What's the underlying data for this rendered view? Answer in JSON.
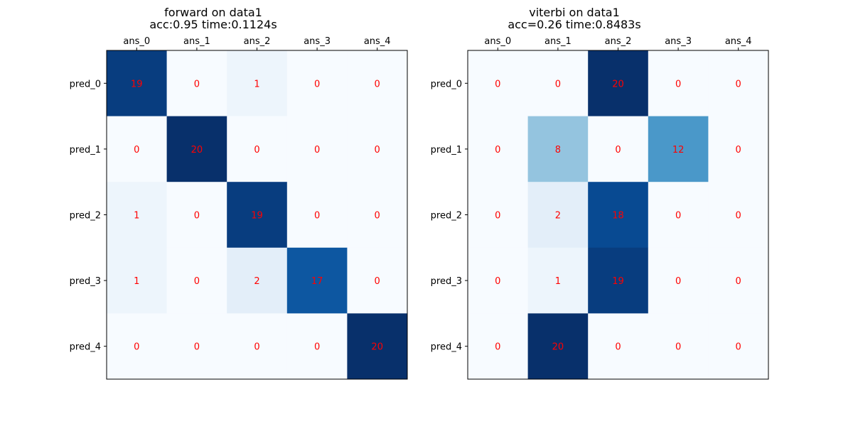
{
  "chart_data": [
    {
      "type": "heatmap",
      "title_line1": "forward on data1",
      "title_line2": "acc:0.95 time:0.1124s",
      "columns": [
        "ans_0",
        "ans_1",
        "ans_2",
        "ans_3",
        "ans_4"
      ],
      "rows": [
        "pred_0",
        "pred_1",
        "pred_2",
        "pred_3",
        "pred_4"
      ],
      "values": [
        [
          19,
          0,
          1,
          0,
          0
        ],
        [
          0,
          20,
          0,
          0,
          0
        ],
        [
          1,
          0,
          19,
          0,
          0
        ],
        [
          1,
          0,
          2,
          17,
          0
        ],
        [
          0,
          0,
          0,
          0,
          20
        ]
      ],
      "vmin": 0,
      "vmax": 20,
      "colormap": "Blues",
      "annotation_color": "#ff0000",
      "grid": false
    },
    {
      "type": "heatmap",
      "title_line1": "viterbi on data1",
      "title_line2": "acc=0.26 time:0.8483s",
      "columns": [
        "ans_0",
        "ans_1",
        "ans_2",
        "ans_3",
        "ans_4"
      ],
      "rows": [
        "pred_0",
        "pred_1",
        "pred_2",
        "pred_3",
        "pred_4"
      ],
      "values": [
        [
          0,
          0,
          20,
          0,
          0
        ],
        [
          0,
          8,
          0,
          12,
          0
        ],
        [
          0,
          2,
          18,
          0,
          0
        ],
        [
          0,
          1,
          19,
          0,
          0
        ],
        [
          0,
          20,
          0,
          0,
          0
        ]
      ],
      "vmin": 0,
      "vmax": 20,
      "colormap": "Blues",
      "annotation_color": "#ff0000",
      "grid": false
    }
  ]
}
